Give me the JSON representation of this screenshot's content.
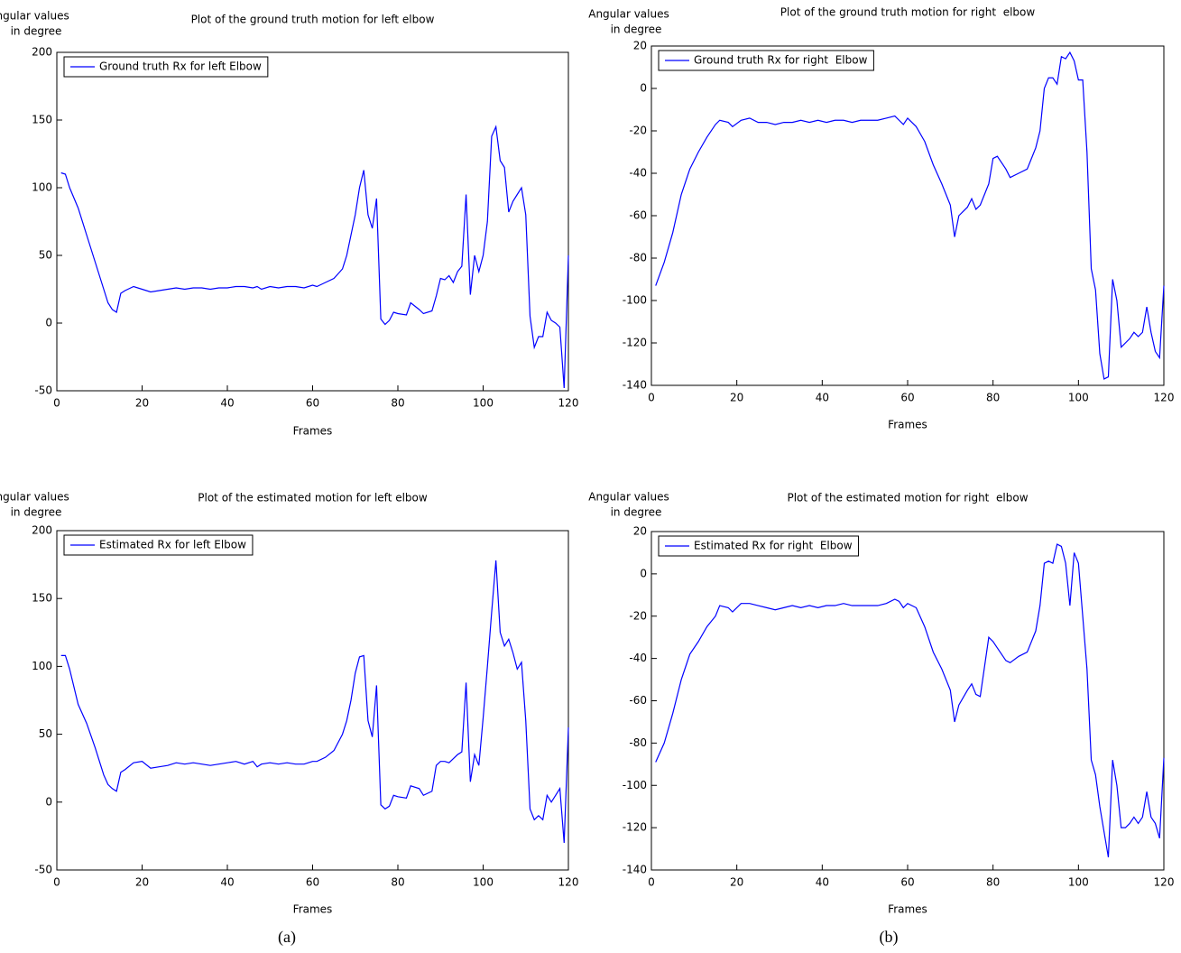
{
  "chart_data": [
    {
      "type": "line",
      "title": "Plot of the ground truth motion for left elbow",
      "ylabel": [
        "Angular values",
        "in degree"
      ],
      "xlabel": "Frames",
      "x": [
        1,
        2,
        3,
        5,
        7,
        9,
        10,
        11,
        12,
        13,
        14,
        15,
        16,
        18,
        20,
        22,
        24,
        26,
        28,
        30,
        32,
        34,
        36,
        38,
        40,
        42,
        44,
        46,
        47,
        48,
        50,
        52,
        54,
        56,
        58,
        60,
        61,
        63,
        65,
        67,
        68,
        69,
        70,
        71,
        72,
        73,
        74,
        75,
        76,
        77,
        78,
        79,
        80,
        82,
        83,
        85,
        86,
        88,
        89,
        90,
        91,
        92,
        93,
        94,
        95,
        96,
        97,
        98,
        99,
        100,
        101,
        102,
        103,
        104,
        105,
        106,
        107,
        108,
        109,
        110,
        111,
        112,
        113,
        114,
        115,
        116,
        117,
        118,
        119,
        120
      ],
      "series": [
        {
          "name": "Ground truth Rx for left Elbow",
          "color": "#0000ff",
          "values": [
            111,
            110,
            100,
            85,
            65,
            45,
            35,
            25,
            15,
            10,
            8,
            22,
            24,
            27,
            25,
            23,
            24,
            25,
            26,
            25,
            26,
            26,
            25,
            26,
            26,
            27,
            27,
            26,
            27,
            25,
            27,
            26,
            27,
            27,
            26,
            28,
            27,
            30,
            33,
            40,
            50,
            65,
            80,
            100,
            113,
            80,
            70,
            92,
            3,
            -1,
            2,
            8,
            7,
            6,
            15,
            10,
            7,
            9,
            20,
            33,
            32,
            35,
            30,
            38,
            42,
            95,
            21,
            50,
            38,
            50,
            75,
            138,
            145,
            120,
            115,
            82,
            90,
            95,
            100,
            80,
            5,
            -18,
            -10,
            -10,
            8,
            2,
            0,
            -3,
            -48,
            50
          ]
        }
      ],
      "xlim": [
        0,
        120
      ],
      "xticks": [
        0,
        20,
        40,
        60,
        80,
        100,
        120
      ],
      "ylim": [
        -50,
        200
      ],
      "yticks": [
        -50,
        0,
        50,
        100,
        150,
        200
      ],
      "legend": "upper left"
    },
    {
      "type": "line",
      "title": "Plot of the ground truth motion for right  elbow",
      "ylabel": [
        "Angular values",
        "in degree"
      ],
      "xlabel": "Frames",
      "x": [
        1,
        3,
        5,
        7,
        9,
        11,
        13,
        15,
        16,
        18,
        19,
        21,
        23,
        25,
        27,
        29,
        31,
        33,
        35,
        37,
        39,
        41,
        43,
        45,
        47,
        49,
        51,
        53,
        55,
        57,
        58,
        59,
        60,
        62,
        64,
        66,
        68,
        70,
        71,
        72,
        74,
        75,
        76,
        77,
        79,
        80,
        81,
        83,
        84,
        86,
        88,
        90,
        91,
        92,
        93,
        94,
        95,
        96,
        97,
        98,
        99,
        100,
        101,
        102,
        103,
        104,
        105,
        106,
        107,
        108,
        109,
        110,
        111,
        112,
        113,
        114,
        115,
        116,
        117,
        118,
        119,
        120
      ],
      "series": [
        {
          "name": "Ground truth Rx for right  Elbow",
          "color": "#0000ff",
          "values": [
            -93,
            -82,
            -68,
            -50,
            -38,
            -30,
            -23,
            -17,
            -15,
            -16,
            -18,
            -15,
            -14,
            -16,
            -16,
            -17,
            -16,
            -16,
            -15,
            -16,
            -15,
            -16,
            -15,
            -15,
            -16,
            -15,
            -15,
            -15,
            -14,
            -13,
            -15,
            -17,
            -14,
            -18,
            -25,
            -36,
            -45,
            -55,
            -70,
            -60,
            -56,
            -52,
            -57,
            -55,
            -45,
            -33,
            -32,
            -38,
            -42,
            -40,
            -38,
            -28,
            -20,
            0,
            5,
            5,
            2,
            15,
            14,
            17,
            13,
            4,
            4,
            -30,
            -85,
            -95,
            -125,
            -137,
            -136,
            -90,
            -100,
            -122,
            -120,
            -118,
            -115,
            -117,
            -115,
            -103,
            -115,
            -124,
            -127,
            -93
          ]
        }
      ],
      "xlim": [
        0,
        120
      ],
      "xticks": [
        0,
        20,
        40,
        60,
        80,
        100,
        120
      ],
      "ylim": [
        -140,
        20
      ],
      "yticks": [
        -140,
        -120,
        -100,
        -80,
        -60,
        -40,
        -20,
        0,
        20
      ],
      "legend": "upper left"
    },
    {
      "type": "line",
      "title": "Plot of the estimated motion for left elbow",
      "ylabel": [
        "Angular values",
        "in degree"
      ],
      "xlabel": "Frames",
      "x": [
        1,
        2,
        3,
        5,
        7,
        9,
        10,
        11,
        12,
        13,
        14,
        15,
        16,
        18,
        20,
        22,
        24,
        26,
        28,
        30,
        32,
        34,
        36,
        38,
        40,
        42,
        44,
        46,
        47,
        48,
        50,
        52,
        54,
        56,
        58,
        60,
        61,
        63,
        65,
        67,
        68,
        69,
        70,
        71,
        72,
        73,
        74,
        75,
        76,
        77,
        78,
        79,
        80,
        82,
        83,
        85,
        86,
        88,
        89,
        90,
        91,
        92,
        93,
        94,
        95,
        96,
        97,
        98,
        99,
        100,
        101,
        102,
        103,
        104,
        105,
        106,
        107,
        108,
        109,
        110,
        111,
        112,
        113,
        114,
        115,
        116,
        117,
        118,
        119,
        120
      ],
      "series": [
        {
          "name": "Estimated Rx for left Elbow",
          "color": "#0000ff",
          "values": [
            108,
            108,
            98,
            72,
            58,
            40,
            30,
            20,
            13,
            10,
            8,
            22,
            24,
            29,
            30,
            25,
            26,
            27,
            29,
            28,
            29,
            28,
            27,
            28,
            29,
            30,
            28,
            30,
            26,
            28,
            29,
            28,
            29,
            28,
            28,
            30,
            30,
            33,
            38,
            50,
            60,
            75,
            95,
            107,
            108,
            60,
            48,
            86,
            -2,
            -5,
            -3,
            5,
            4,
            3,
            12,
            10,
            5,
            8,
            27,
            30,
            30,
            29,
            32,
            35,
            37,
            88,
            15,
            35,
            27,
            62,
            100,
            140,
            178,
            125,
            115,
            120,
            110,
            98,
            103,
            60,
            -5,
            -13,
            -10,
            -13,
            5,
            0,
            5,
            10,
            -30,
            55
          ]
        }
      ],
      "xlim": [
        0,
        120
      ],
      "xticks": [
        0,
        20,
        40,
        60,
        80,
        100,
        120
      ],
      "ylim": [
        -50,
        200
      ],
      "yticks": [
        -50,
        0,
        50,
        100,
        150,
        200
      ],
      "legend": "upper left"
    },
    {
      "type": "line",
      "title": "Plot of the estimated motion for right  elbow",
      "ylabel": [
        "Angular values",
        "in degree"
      ],
      "xlabel": "Frames",
      "x": [
        1,
        3,
        5,
        7,
        9,
        11,
        13,
        15,
        16,
        18,
        19,
        21,
        23,
        25,
        27,
        29,
        31,
        33,
        35,
        37,
        39,
        41,
        43,
        45,
        47,
        49,
        51,
        53,
        55,
        57,
        58,
        59,
        60,
        62,
        64,
        66,
        68,
        70,
        71,
        72,
        74,
        75,
        76,
        77,
        79,
        80,
        81,
        83,
        84,
        86,
        88,
        90,
        91,
        92,
        93,
        94,
        95,
        96,
        97,
        98,
        99,
        100,
        101,
        102,
        103,
        104,
        105,
        106,
        107,
        108,
        109,
        110,
        111,
        112,
        113,
        114,
        115,
        116,
        117,
        118,
        119,
        120
      ],
      "series": [
        {
          "name": "Estimated Rx for right  Elbow",
          "color": "#0000ff",
          "values": [
            -89,
            -80,
            -66,
            -50,
            -38,
            -32,
            -25,
            -20,
            -15,
            -16,
            -18,
            -14,
            -14,
            -15,
            -16,
            -17,
            -16,
            -15,
            -16,
            -15,
            -16,
            -15,
            -15,
            -14,
            -15,
            -15,
            -15,
            -15,
            -14,
            -12,
            -13,
            -16,
            -14,
            -16,
            -25,
            -37,
            -45,
            -55,
            -70,
            -62,
            -55,
            -52,
            -57,
            -58,
            -30,
            -32,
            -35,
            -41,
            -42,
            -39,
            -37,
            -27,
            -15,
            5,
            6,
            5,
            14,
            13,
            5,
            -15,
            10,
            5,
            -20,
            -45,
            -88,
            -95,
            -110,
            -122,
            -134,
            -88,
            -100,
            -120,
            -120,
            -118,
            -115,
            -118,
            -115,
            -103,
            -115,
            -118,
            -125,
            -87
          ]
        }
      ],
      "xlim": [
        0,
        120
      ],
      "xticks": [
        0,
        20,
        40,
        60,
        80,
        100,
        120
      ],
      "ylim": [
        -140,
        20
      ],
      "yticks": [
        -140,
        -120,
        -100,
        -80,
        -60,
        -40,
        -20,
        0,
        20
      ],
      "legend": "upper left"
    }
  ],
  "captions": [
    "(a)",
    "(b)"
  ]
}
